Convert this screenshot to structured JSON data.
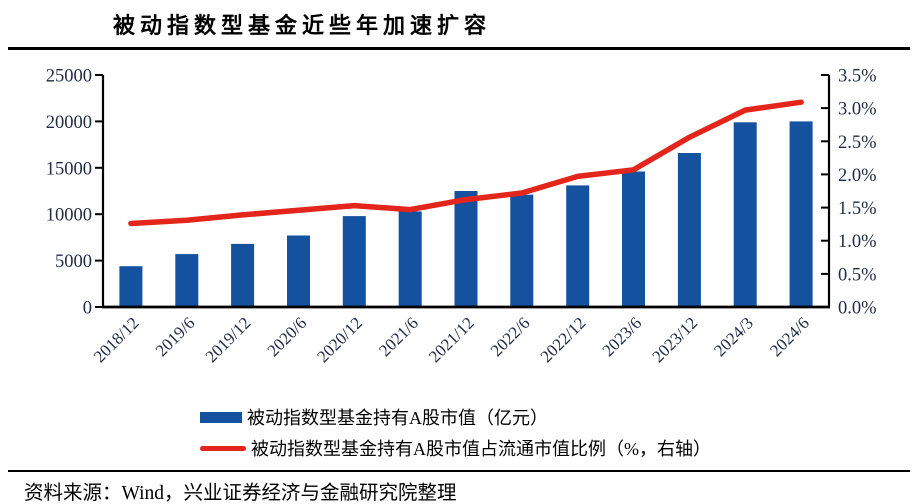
{
  "page": {
    "title": "被动指数型基金近些年加速扩容",
    "source_note": "资料来源：Wind，兴业证券经济与金融研究院整理"
  },
  "colors": {
    "bar_blue": "#14519E",
    "line_red": "#E3251C",
    "axis_black": "#000000",
    "tick_label_navy": "#1E2B44"
  },
  "chart_data": {
    "type": "bar",
    "subtype": "combo-bar-line-dual-axis",
    "title": "被动指数型基金近些年加速扩容",
    "categories": [
      "2018/12",
      "2019/6",
      "2019/12",
      "2020/6",
      "2020/12",
      "2021/6",
      "2021/12",
      "2022/6",
      "2022/12",
      "2023/6",
      "2023/12",
      "2024/3",
      "2024/6"
    ],
    "series": [
      {
        "name": "被动指数型基金持有A股市值（亿元）",
        "type": "bar",
        "axis": "left",
        "color": "#14519E",
        "values": [
          4400,
          5700,
          6800,
          7700,
          9800,
          10300,
          12500,
          12100,
          13100,
          14600,
          16600,
          19900,
          20000
        ]
      },
      {
        "name": "被动指数型基金持有A股市值占流通市值比例（%，右轴）",
        "type": "line",
        "axis": "right",
        "color": "#E3251C",
        "values": [
          1.26,
          1.31,
          1.39,
          1.46,
          1.53,
          1.47,
          1.62,
          1.72,
          1.97,
          2.07,
          2.56,
          2.97,
          3.09
        ]
      }
    ],
    "left_axis": {
      "min": 0,
      "max": 25000,
      "step": 5000,
      "tick_labels": [
        "0",
        "5000",
        "10000",
        "15000",
        "20000",
        "25000"
      ]
    },
    "right_axis": {
      "min": 0,
      "max": 3.5,
      "step": 0.5,
      "tick_labels": [
        "0.0%",
        "0.5%",
        "1.0%",
        "1.5%",
        "2.0%",
        "2.5%",
        "3.0%",
        "3.5%"
      ]
    },
    "legend_position": "bottom",
    "grid": false
  }
}
